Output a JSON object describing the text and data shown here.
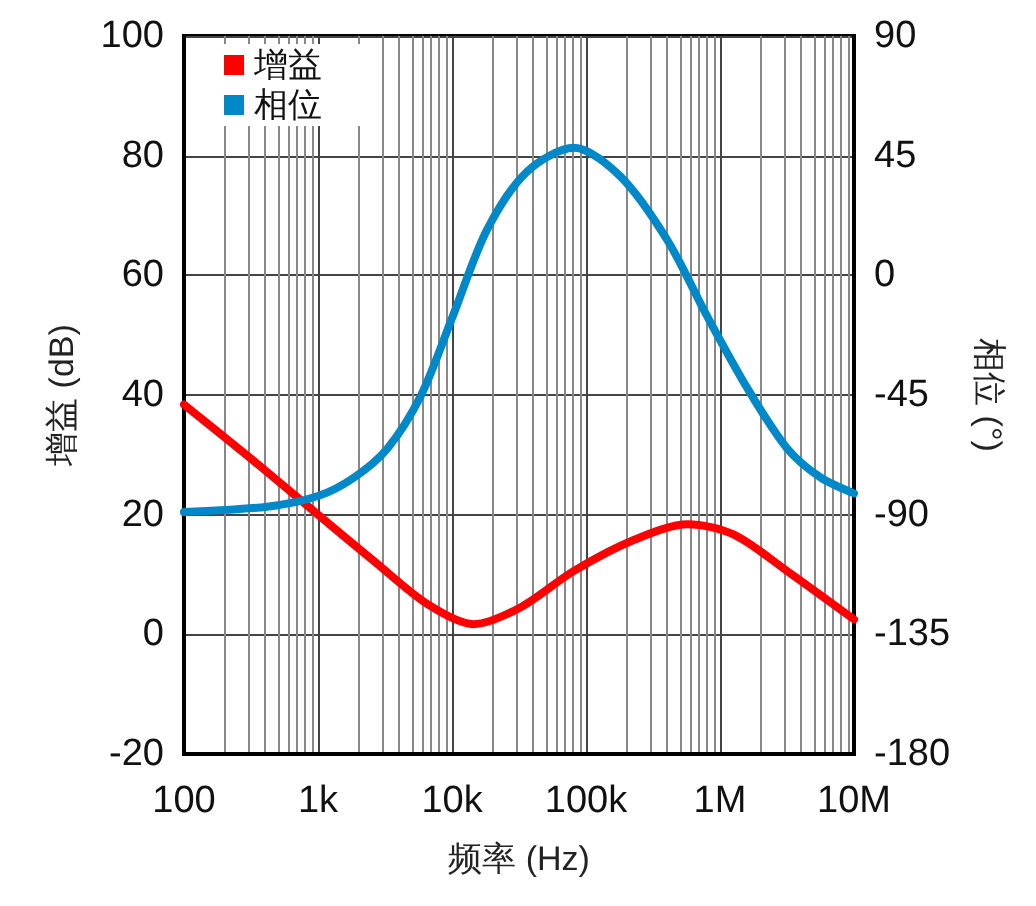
{
  "chart_data": {
    "type": "line",
    "xlabel": "频率 (Hz)",
    "ylabel": "增益 (dB)",
    "y2label": "相位 (°)",
    "log": "x",
    "grid": true,
    "legend": "top left",
    "marker": "none",
    "line_style": "solid",
    "xlim": [
      100,
      10000000
    ],
    "xticks": [
      {
        "value": 100,
        "label": "100"
      },
      {
        "value": 1000,
        "label": "1k"
      },
      {
        "value": 10000,
        "label": "10k"
      },
      {
        "value": 100000,
        "label": "100k"
      },
      {
        "value": 1000000,
        "label": "1M"
      },
      {
        "value": 10000000,
        "label": "10M"
      }
    ],
    "ylim": [
      -20,
      100
    ],
    "yticks": [
      -20,
      0,
      20,
      40,
      60,
      80,
      100
    ],
    "y2lim": [
      -180,
      90
    ],
    "y2ticks": [
      -180,
      -135,
      -90,
      -45,
      0,
      45,
      90
    ],
    "series": [
      {
        "name": "增益",
        "color": "#ff0000",
        "x": [
          100,
          331,
          1000,
          2630,
          6610,
          14500,
          32400,
          81300,
          229000,
          575000,
          1260000,
          3160000,
          10000000
        ],
        "values": [
          38.4,
          29,
          20,
          12.2,
          5,
          1.7,
          4.5,
          10.6,
          15.8,
          18.4,
          16.7,
          10.6,
          2.5
        ]
      },
      {
        "name": "相位",
        "color": "#0088c8",
        "axis": "y2",
        "x": [
          100,
          417,
          1000,
          1860,
          3310,
          5890,
          10200,
          18200,
          36300,
          81300,
          182000,
          407000,
          794000,
          1580000,
          3160000,
          5620000,
          10000000
        ],
        "values": [
          -89,
          -87,
          -83,
          -76,
          -65,
          -45,
          -15,
          17,
          39,
          48,
          37,
          13,
          -15,
          -42,
          -65,
          -76,
          -82
        ]
      }
    ]
  }
}
